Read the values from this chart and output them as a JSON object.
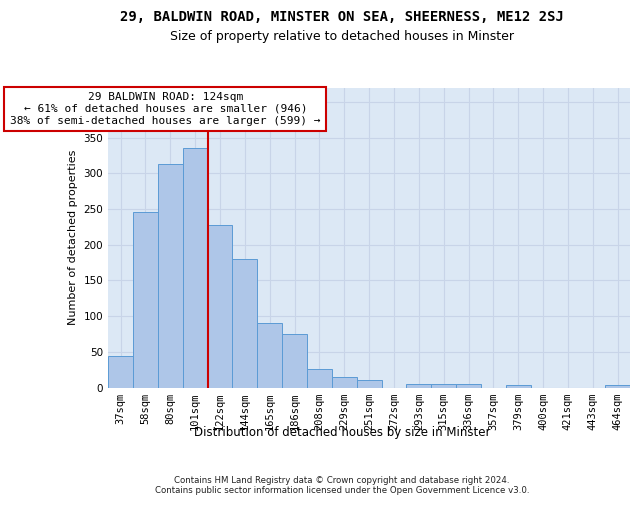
{
  "title1": "29, BALDWIN ROAD, MINSTER ON SEA, SHEERNESS, ME12 2SJ",
  "title2": "Size of property relative to detached houses in Minster",
  "xlabel": "Distribution of detached houses by size in Minster",
  "ylabel": "Number of detached properties",
  "footer": "Contains HM Land Registry data © Crown copyright and database right 2024.\nContains public sector information licensed under the Open Government Licence v3.0.",
  "bin_labels": [
    "37sqm",
    "58sqm",
    "80sqm",
    "101sqm",
    "122sqm",
    "144sqm",
    "165sqm",
    "186sqm",
    "208sqm",
    "229sqm",
    "251sqm",
    "272sqm",
    "293sqm",
    "315sqm",
    "336sqm",
    "357sqm",
    "379sqm",
    "400sqm",
    "421sqm",
    "443sqm",
    "464sqm"
  ],
  "bar_heights": [
    44,
    246,
    313,
    335,
    228,
    180,
    90,
    75,
    26,
    15,
    10,
    0,
    5,
    5,
    5,
    0,
    4,
    0,
    0,
    0,
    3
  ],
  "bar_color": "#aec6e8",
  "bar_edge_color": "#5b9bd5",
  "vline_color": "#cc0000",
  "annotation_text": "29 BALDWIN ROAD: 124sqm\n← 61% of detached houses are smaller (946)\n38% of semi-detached houses are larger (599) →",
  "annotation_box_color": "#ffffff",
  "annotation_box_edge": "#cc0000",
  "ylim": [
    0,
    420
  ],
  "yticks": [
    0,
    50,
    100,
    150,
    200,
    250,
    300,
    350,
    400
  ],
  "grid_color": "#c8d4e8",
  "background_color": "#dce8f5",
  "title1_fontsize": 10,
  "title2_fontsize": 9,
  "annotation_fontsize": 8,
  "ylabel_fontsize": 8,
  "xlabel_fontsize": 8.5,
  "tick_fontsize": 7.5
}
